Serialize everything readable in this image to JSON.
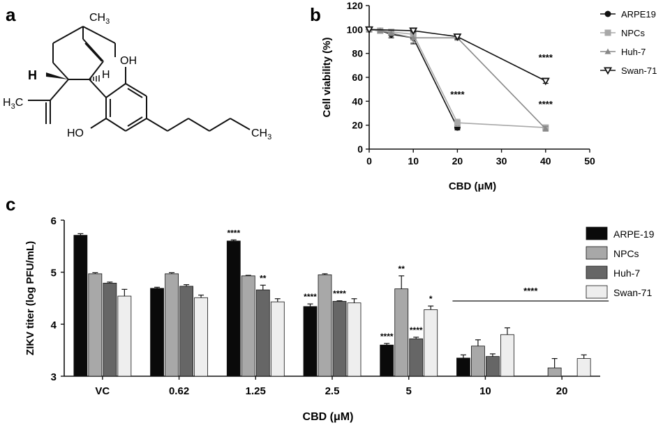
{
  "panel_labels": {
    "a": "a",
    "b": "b",
    "c": "c"
  },
  "structure_labels": {
    "ch3_top": "CH",
    "ch3_top_sub": "3",
    "oh_top": "OH",
    "oh_bottom": "HO",
    "h_left": "H",
    "h_right": "H",
    "h3c": "H",
    "h3c_sub": "3",
    "h3c_c": "C",
    "ch3_tail": "CH",
    "ch3_tail_sub": "3"
  },
  "chart_data": [
    {
      "type": "line",
      "panel": "b",
      "xlabel": "CBD (μM)",
      "ylabel": "Cell viability (%)",
      "xlim": [
        0,
        50
      ],
      "ylim": [
        0,
        120
      ],
      "xticks": [
        "0",
        "10",
        "20",
        "30",
        "40",
        "50"
      ],
      "yticks": [
        "0",
        "20",
        "40",
        "60",
        "80",
        "100",
        "120"
      ],
      "legend_position": "right",
      "series": [
        {
          "name": "ARPE19",
          "color": "#111111",
          "marker": "circle",
          "x": [
            0,
            2.5,
            5,
            10,
            20
          ],
          "y": [
            100,
            99,
            96,
            93,
            18
          ],
          "err": [
            0,
            1,
            3,
            5,
            2
          ]
        },
        {
          "name": "NPCs",
          "color": "#a8a8a8",
          "marker": "square",
          "x": [
            0,
            2.5,
            5,
            10,
            20,
            40
          ],
          "y": [
            100,
            99,
            98,
            96,
            22,
            18
          ],
          "err": [
            0,
            1,
            2,
            4,
            3,
            2
          ]
        },
        {
          "name": "Huh-7",
          "color": "#888888",
          "marker": "triangle-up",
          "x": [
            0,
            2.5,
            5,
            10,
            20,
            40
          ],
          "y": [
            100,
            99,
            97,
            93,
            93,
            17
          ],
          "err": [
            0,
            1,
            2,
            4,
            2,
            2
          ]
        },
        {
          "name": "Swan-71",
          "color": "#111111",
          "marker": "triangle-down-open",
          "x": [
            0,
            10,
            20,
            40
          ],
          "y": [
            100,
            99,
            94,
            57
          ],
          "err": [
            0,
            1,
            2,
            2
          ]
        }
      ],
      "annotations": [
        {
          "x": 20,
          "y": 43,
          "text": "****"
        },
        {
          "x": 40,
          "y": 74,
          "text": "****"
        },
        {
          "x": 40,
          "y": 35,
          "text": "****"
        }
      ]
    },
    {
      "type": "bar",
      "panel": "c",
      "xlabel": "CBD (μM)",
      "ylabel": "ZIKV titer (log PFU/mL)",
      "ylim": [
        3,
        6
      ],
      "yticks": [
        "3",
        "4",
        "5",
        "6"
      ],
      "categories": [
        "VC",
        "0.62",
        "1.25",
        "2.5",
        "5",
        "10",
        "20"
      ],
      "legend_position": "right",
      "series": [
        {
          "name": "ARPE-19",
          "color": "#0a0a0a",
          "values": [
            5.71,
            4.69,
            5.6,
            4.34,
            3.6,
            3.35,
            null
          ],
          "err": [
            0.03,
            0.02,
            0.02,
            0.05,
            0.03,
            0.06,
            null
          ],
          "sig": [
            "",
            "",
            "****",
            "****",
            "****",
            "",
            ""
          ]
        },
        {
          "name": "NPCs",
          "color": "#a8a8a8",
          "values": [
            4.97,
            4.97,
            4.93,
            4.95,
            4.68,
            3.58,
            3.16
          ],
          "err": [
            0.02,
            0.02,
            0.01,
            0.02,
            0.25,
            0.12,
            0.18
          ],
          "sig": [
            "",
            "",
            "",
            "",
            "**",
            "",
            ""
          ]
        },
        {
          "name": "Huh-7",
          "color": "#666666",
          "values": [
            4.79,
            4.73,
            4.66,
            4.44,
            3.72,
            3.38,
            null
          ],
          "err": [
            0.02,
            0.03,
            0.09,
            0.01,
            0.03,
            0.05,
            null
          ],
          "sig": [
            "",
            "",
            "**",
            "****",
            "****",
            "",
            ""
          ]
        },
        {
          "name": "Swan-71",
          "color": "#eeeeee",
          "values": [
            4.54,
            4.51,
            4.43,
            4.41,
            4.28,
            3.8,
            3.34
          ],
          "err": [
            0.13,
            0.05,
            0.06,
            0.08,
            0.07,
            0.13,
            0.07
          ],
          "sig": [
            "",
            "",
            "",
            "",
            "*",
            "",
            ""
          ]
        }
      ],
      "group_significance": {
        "from": "10",
        "to": "20",
        "text": "****"
      }
    }
  ]
}
